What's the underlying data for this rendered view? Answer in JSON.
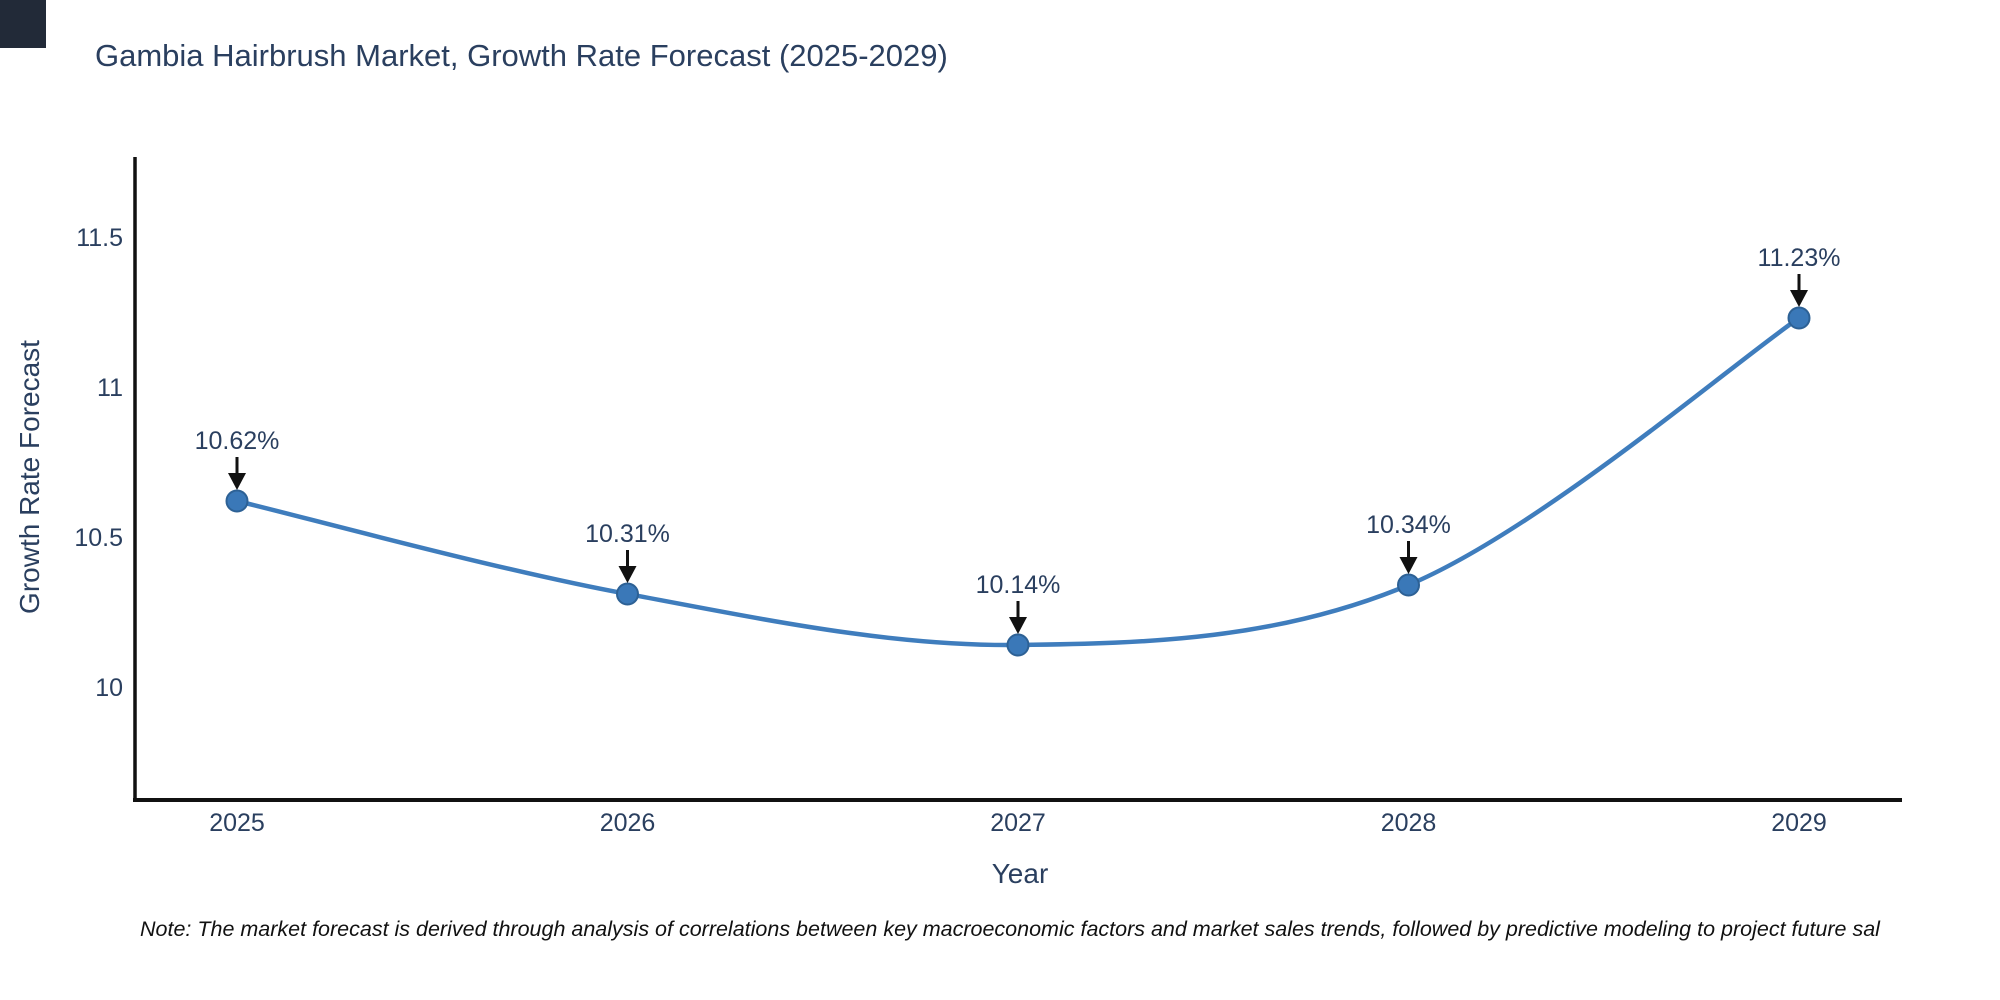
{
  "title": "Gambia Hairbrush Market, Growth Rate Forecast (2025-2029)",
  "note": "Note: The market forecast is derived through analysis of correlations between key macroeconomic factors and market sales trends, followed by predictive modeling to project future sal",
  "colors": {
    "line": "#3f7dbd",
    "marker_fill": "#3a78b8",
    "marker_border": "#2d6195",
    "text": "#2a3f5f",
    "axis": "#111111",
    "arrow": "#111111",
    "corner_artifact": "#222a38",
    "background": "#ffffff"
  },
  "chart_data": {
    "type": "line",
    "title": "Gambia Hairbrush Market, Growth Rate Forecast (2025-2029)",
    "xlabel": "Year",
    "ylabel": "Growth Rate Forecast",
    "x": [
      2025,
      2026,
      2027,
      2028,
      2029
    ],
    "values": [
      10.62,
      10.31,
      10.14,
      10.34,
      11.23
    ],
    "point_labels": [
      "10.62%",
      "10.31%",
      "10.14%",
      "10.34%",
      "11.23%"
    ],
    "xtick_labels": [
      "2025",
      "2026",
      "2027",
      "2028",
      "2029"
    ],
    "ytick_values": [
      10,
      10.5,
      11,
      11.5
    ],
    "ytick_labels": [
      "10",
      "10.5",
      "11",
      "11.5"
    ],
    "xlim": [
      2024.73,
      2029.26
    ],
    "ylim": [
      9.62,
      11.77
    ],
    "grid": false,
    "legend_position": "none",
    "line_shape": "spline",
    "annotations": "value labels with down arrows above each point"
  }
}
